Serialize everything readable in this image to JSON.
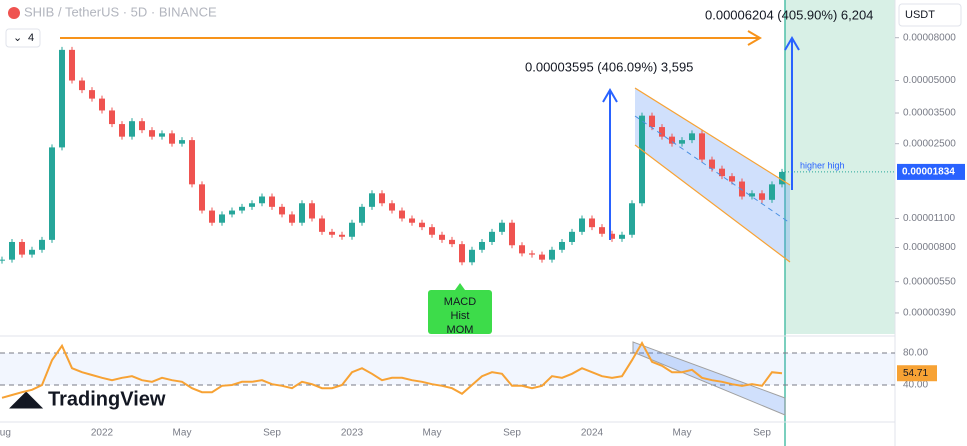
{
  "chart_data": [
    {
      "type": "candlestick",
      "title": "SHIB / TetherUS · 5D · BINANCE",
      "interval_badge": "4",
      "currency": "USDT",
      "brand": "TradingView",
      "log_scale": true,
      "grid": false,
      "up_color": "#26a69a",
      "down_color": "#ef5350",
      "categories": [
        "Aug",
        null,
        null,
        null,
        null,
        null,
        null,
        null,
        null,
        null,
        "2022",
        null,
        null,
        null,
        null,
        null,
        null,
        null,
        "May",
        null,
        null,
        null,
        null,
        null,
        null,
        null,
        null,
        "Sep",
        null,
        null,
        null,
        null,
        null,
        null,
        null,
        "2023",
        null,
        null,
        null,
        null,
        null,
        null,
        null,
        "May",
        null,
        null,
        null,
        null,
        null,
        null,
        null,
        "Sep",
        null,
        null,
        null,
        null,
        null,
        null,
        null,
        "2024",
        null,
        null,
        null,
        null,
        null,
        null,
        null,
        null,
        "May",
        null,
        null,
        null,
        null,
        null,
        null,
        null,
        "Sep",
        null,
        null
      ],
      "values": [
        7e-06,
        8.5e-06,
        7.4e-06,
        7.8e-06,
        8.7e-06,
        2.4e-05,
        7e-05,
        5e-05,
        4.5e-05,
        4.1e-05,
        3.6e-05,
        3.1e-05,
        2.7e-05,
        3.2e-05,
        2.9e-05,
        2.7e-05,
        2.8e-05,
        2.5e-05,
        2.6e-05,
        1.6e-05,
        1.2e-05,
        1.05e-05,
        1.15e-05,
        1.2e-05,
        1.25e-05,
        1.3e-05,
        1.4e-05,
        1.25e-05,
        1.15e-05,
        1.05e-05,
        1.3e-05,
        1.1e-05,
        9.5e-06,
        9.2e-06,
        9e-06,
        1.05e-05,
        1.25e-05,
        1.45e-05,
        1.3e-05,
        1.2e-05,
        1.1e-05,
        1.05e-05,
        1e-05,
        9.2e-06,
        8.7e-06,
        8.3e-06,
        6.8e-06,
        7.8e-06,
        8.5e-06,
        9.5e-06,
        1.05e-05,
        8.2e-06,
        7.5e-06,
        7.4e-06,
        7e-06,
        7.8e-06,
        8.5e-06,
        9.5e-06,
        1.1e-05,
        1e-05,
        9.3e-06,
        8.8e-06,
        9.2e-06,
        1.3e-05,
        3.4e-05,
        3e-05,
        2.7e-05,
        2.5e-05,
        2.6e-05,
        2.8e-05,
        2.1e-05,
        1.9e-05,
        1.75e-05,
        1.65e-05,
        1.4e-05,
        1.45e-05,
        1.35e-05,
        1.6e-05,
        1.834e-05
      ],
      "ylim": [
        3.13e-06,
        0.000121
      ],
      "yticks": [
        {
          "value": 3.9e-06,
          "label": "0.00000390"
        },
        {
          "value": 5.5e-06,
          "label": "0.00000550"
        },
        {
          "value": 8e-06,
          "label": "0.00000800"
        },
        {
          "value": 1.1e-05,
          "label": "0.00001100"
        },
        {
          "value": 2.5e-05,
          "label": "0.00002500"
        },
        {
          "value": 3.5e-05,
          "label": "0.00003500"
        },
        {
          "value": 5e-05,
          "label": "0.00005000"
        },
        {
          "value": 8e-05,
          "label": "0.00008000"
        }
      ],
      "annotations": [
        "0.00006204 (405.90%) 6,204",
        "0.00003595 (406.09%) 3,595",
        "higher high"
      ],
      "signal_label": [
        "MACD",
        "Hist",
        "MOM"
      ]
    },
    {
      "type": "line",
      "color": "#f7a234",
      "values": [
        24,
        27.5,
        31,
        34,
        40,
        71,
        89,
        61,
        56,
        52.5,
        49,
        46,
        49,
        51,
        46,
        44,
        49,
        46,
        44,
        36,
        31,
        31,
        39,
        40,
        44,
        44,
        46,
        41,
        39,
        36,
        44,
        41,
        36,
        36,
        40,
        56,
        61,
        54,
        46,
        49,
        49,
        46,
        44,
        41,
        39,
        36,
        29,
        40,
        51,
        56,
        54,
        39,
        39,
        36,
        39,
        51,
        49,
        54,
        61,
        56,
        51,
        49,
        51,
        71,
        92.5,
        69,
        64,
        56,
        56,
        59,
        49,
        46,
        44,
        41,
        39,
        41,
        39,
        56,
        54.71
      ],
      "ylim": [
        -6.25,
        96.25
      ],
      "yticks": [
        {
          "value": 40,
          "label": "40.00"
        },
        {
          "value": 80,
          "label": "80.00"
        }
      ]
    }
  ]
}
